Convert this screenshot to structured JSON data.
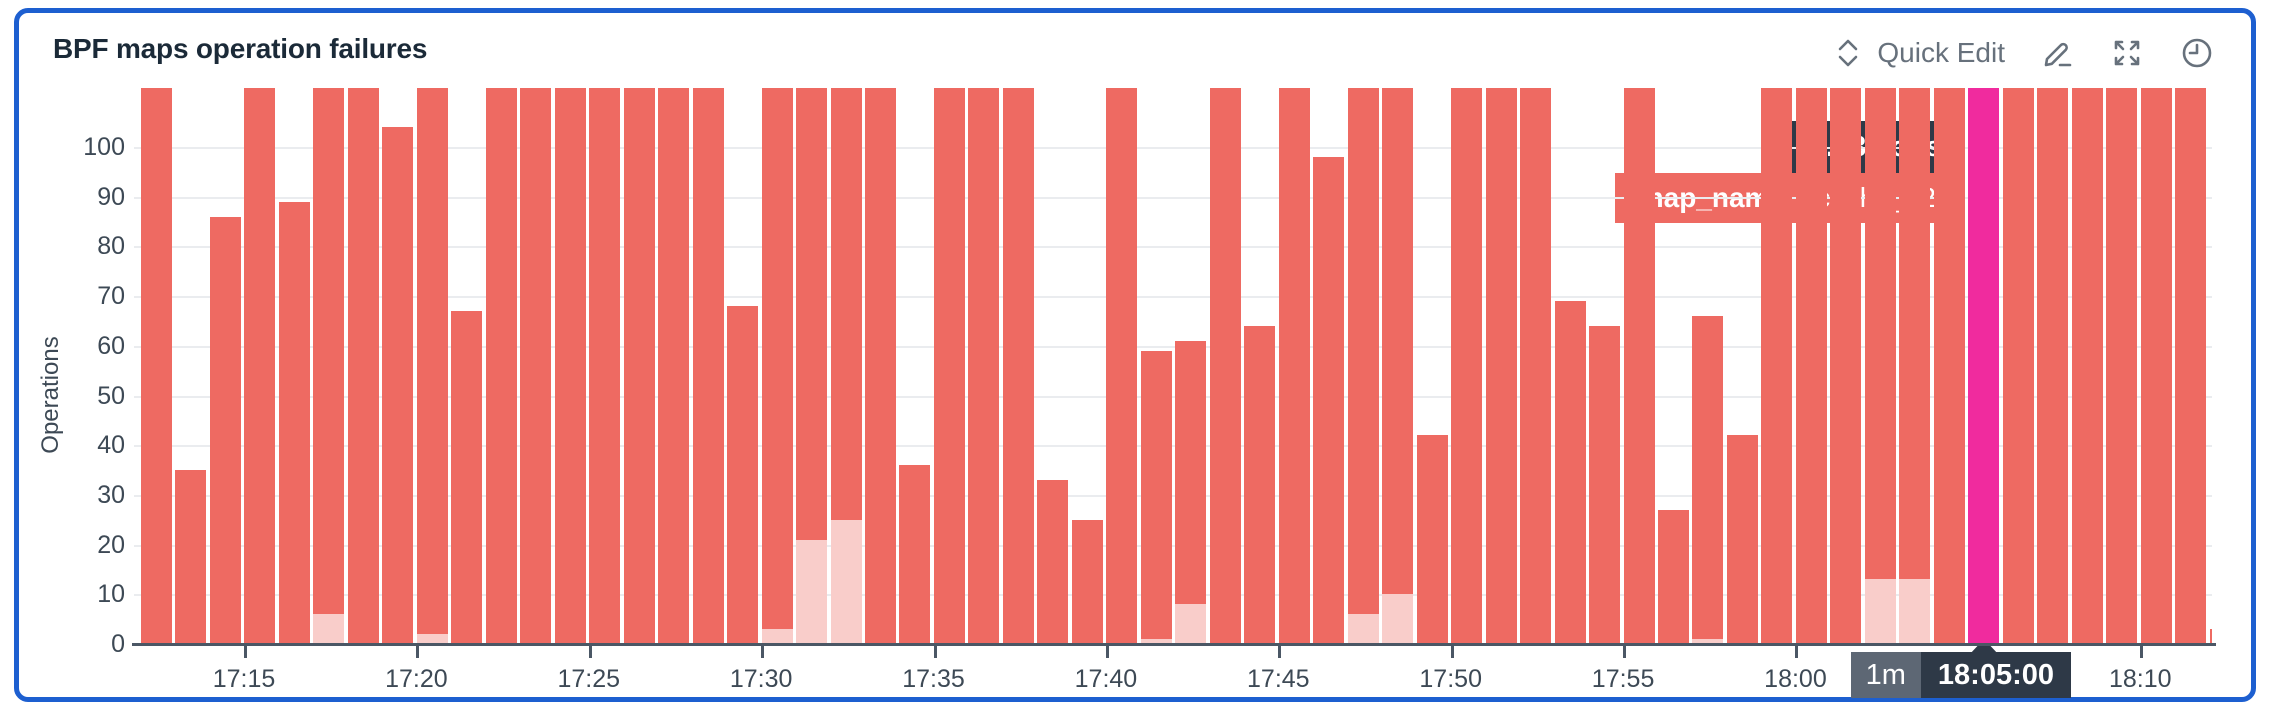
{
  "panel": {
    "title": "BPF maps operation failures",
    "actions": {
      "quick_edit_label": "Quick Edit",
      "icons": [
        "collapse-expand-icon",
        "edit-pencil-icon",
        "fullscreen-icon",
        "timeframe-clock-icon"
      ]
    }
  },
  "colors": {
    "bar": "#ee6a62",
    "bar_light": "#f9cdca",
    "bar_highlight": "#f02b9e",
    "tooltip_dark": "#2e3947",
    "interval_badge": "#5d6774",
    "panel_border": "#1d5fd0",
    "grid_line": "#eaecef",
    "axis_line": "#4b5765",
    "axis_text": "#3d4955",
    "title_text": "#1b2a38",
    "header_muted": "#67717c"
  },
  "tooltip": {
    "value": "2.43k ops",
    "series_key_label": "map_name:",
    "series_value": "ipcache_v2"
  },
  "time_tooltip": {
    "interval": "1m",
    "time": "18:05:00"
  },
  "chart_data": {
    "type": "bar",
    "title": "BPF maps operation failures",
    "ylabel": "Operations",
    "unit": "ops",
    "ylim": [
      0,
      100
    ],
    "y_ticks": [
      0,
      10,
      20,
      30,
      40,
      50,
      60,
      70,
      80,
      90,
      100
    ],
    "x_tick_labels": [
      "17:15",
      "17:20",
      "17:25",
      "17:30",
      "17:35",
      "17:40",
      "17:45",
      "17:50",
      "17:55",
      "18:00",
      "18:10"
    ],
    "bar_interval": "1m",
    "grid": "horizontal",
    "legend": "none",
    "note": "Bars marked cap exceed the visible axis and are clipped at the plot top; light = lighter stacked bottom segment; hovered bar 18:05 = 2430 ops",
    "bars": [
      {
        "t": "17:12",
        "v": null,
        "cap": true
      },
      {
        "t": "17:13",
        "v": 35
      },
      {
        "t": "17:14",
        "v": 86
      },
      {
        "t": "17:15",
        "v": null,
        "cap": true
      },
      {
        "t": "17:16",
        "v": 89
      },
      {
        "t": "17:17",
        "v": null,
        "cap": true,
        "light": 6
      },
      {
        "t": "17:18",
        "v": null,
        "cap": true
      },
      {
        "t": "17:19",
        "v": 104
      },
      {
        "t": "17:20",
        "v": null,
        "cap": true,
        "light": 2
      },
      {
        "t": "17:21",
        "v": 67
      },
      {
        "t": "17:22",
        "v": null,
        "cap": true
      },
      {
        "t": "17:23",
        "v": null,
        "cap": true
      },
      {
        "t": "17:24",
        "v": null,
        "cap": true
      },
      {
        "t": "17:25",
        "v": null,
        "cap": true
      },
      {
        "t": "17:26",
        "v": null,
        "cap": true
      },
      {
        "t": "17:27",
        "v": null,
        "cap": true
      },
      {
        "t": "17:28",
        "v": null,
        "cap": true
      },
      {
        "t": "17:29",
        "v": 68
      },
      {
        "t": "17:30",
        "v": null,
        "cap": true,
        "light": 3
      },
      {
        "t": "17:31",
        "v": null,
        "cap": true,
        "light": 21
      },
      {
        "t": "17:32",
        "v": null,
        "cap": true,
        "light": 25
      },
      {
        "t": "17:33",
        "v": null,
        "cap": true
      },
      {
        "t": "17:34",
        "v": 36
      },
      {
        "t": "17:35",
        "v": null,
        "cap": true
      },
      {
        "t": "17:36",
        "v": null,
        "cap": true
      },
      {
        "t": "17:37",
        "v": null,
        "cap": true
      },
      {
        "t": "17:38",
        "v": 33
      },
      {
        "t": "17:39",
        "v": 25
      },
      {
        "t": "17:40",
        "v": null,
        "cap": true
      },
      {
        "t": "17:41",
        "v": 59,
        "light": 1
      },
      {
        "t": "17:42",
        "v": 61,
        "light": 8
      },
      {
        "t": "17:43",
        "v": null,
        "cap": true
      },
      {
        "t": "17:44",
        "v": 64
      },
      {
        "t": "17:45",
        "v": null,
        "cap": true
      },
      {
        "t": "17:46",
        "v": 98
      },
      {
        "t": "17:47",
        "v": null,
        "cap": true,
        "light": 6
      },
      {
        "t": "17:48",
        "v": null,
        "cap": true,
        "light": 10
      },
      {
        "t": "17:49",
        "v": 42
      },
      {
        "t": "17:50",
        "v": null,
        "cap": true
      },
      {
        "t": "17:51",
        "v": null,
        "cap": true
      },
      {
        "t": "17:52",
        "v": null,
        "cap": true
      },
      {
        "t": "17:53",
        "v": 69
      },
      {
        "t": "17:54",
        "v": 64
      },
      {
        "t": "17:55",
        "v": null,
        "cap": true
      },
      {
        "t": "17:56",
        "v": 27
      },
      {
        "t": "17:57",
        "v": 66,
        "light": 1
      },
      {
        "t": "17:58",
        "v": 42
      },
      {
        "t": "17:59",
        "v": null,
        "cap": true
      },
      {
        "t": "18:00",
        "v": null,
        "cap": true
      },
      {
        "t": "18:01",
        "v": null,
        "cap": true
      },
      {
        "t": "18:02",
        "v": null,
        "cap": true,
        "light": 13
      },
      {
        "t": "18:03",
        "v": null,
        "cap": true,
        "light": 13
      },
      {
        "t": "18:04",
        "v": null,
        "cap": true
      },
      {
        "t": "18:05",
        "v": 2430,
        "cap": true,
        "highlight": true
      },
      {
        "t": "18:06",
        "v": null,
        "cap": true
      },
      {
        "t": "18:07",
        "v": null,
        "cap": true
      },
      {
        "t": "18:08",
        "v": null,
        "cap": true
      },
      {
        "t": "18:09",
        "v": null,
        "cap": true
      },
      {
        "t": "18:10",
        "v": null,
        "cap": true
      },
      {
        "t": "18:11",
        "v": null,
        "cap": true
      },
      {
        "t": "18:12",
        "v": 3,
        "partial": true
      }
    ]
  }
}
